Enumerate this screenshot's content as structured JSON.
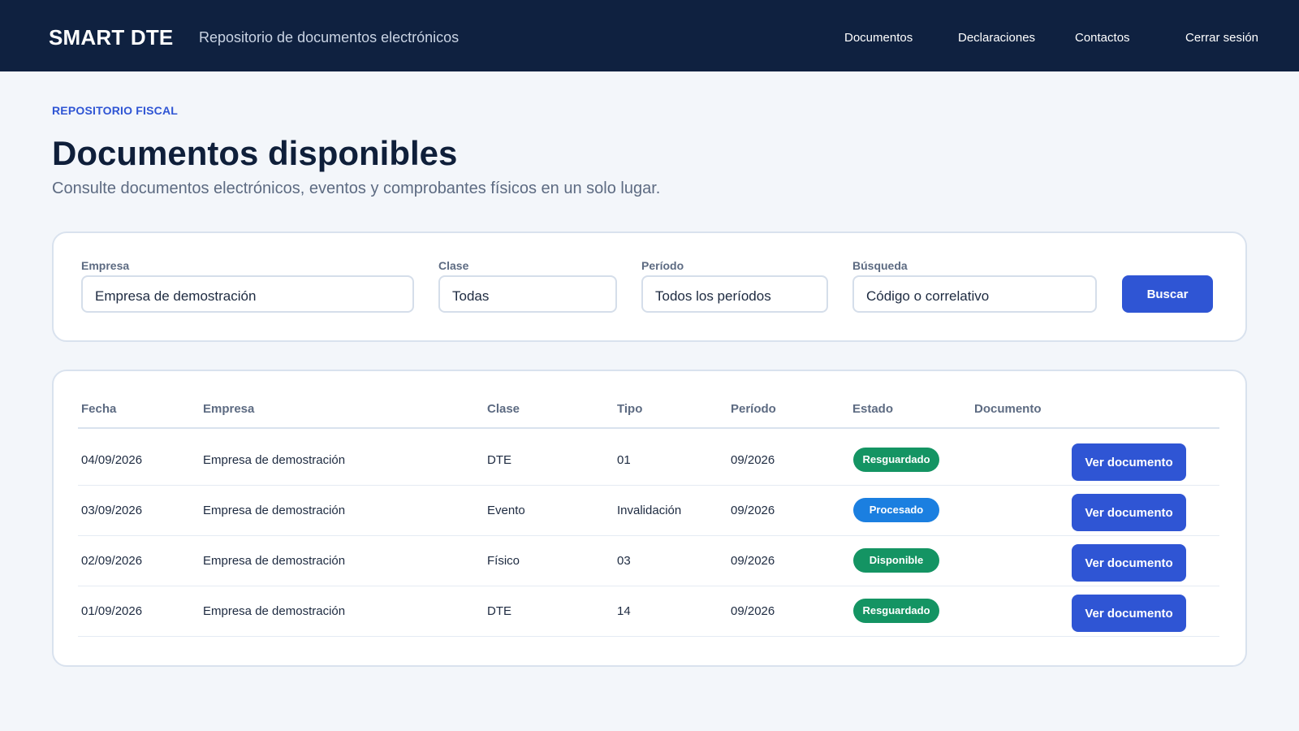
{
  "header": {
    "brand": "SMART DTE",
    "tagline": "Repositorio de documentos electrónicos",
    "nav": [
      "Documentos",
      "Declaraciones",
      "Contactos",
      "Cerrar sesión"
    ]
  },
  "page": {
    "eyebrow": "REPOSITORIO FISCAL",
    "title": "Documentos disponibles",
    "subtitle": "Consulte documentos electrónicos, eventos y comprobantes físicos en un solo lugar."
  },
  "filters": {
    "company": {
      "label": "Empresa",
      "value": "Empresa de demostración"
    },
    "class": {
      "label": "Clase",
      "value": "Todas"
    },
    "period": {
      "label": "Período",
      "value": "Todos los períodos"
    },
    "search": {
      "label": "Búsqueda",
      "placeholder": "Código o correlativo"
    },
    "submit_label": "Buscar"
  },
  "table": {
    "columns": [
      "Fecha",
      "Empresa",
      "Clase",
      "Tipo",
      "Período",
      "Estado",
      "Documento"
    ],
    "rows": [
      {
        "fecha": "04/09/2026",
        "empresa": "Empresa de demostración",
        "clase": "DTE",
        "tipo": "01",
        "periodo": "09/2026",
        "estado": "Resguardado",
        "estado_color": "#149463",
        "action": "Ver documento"
      },
      {
        "fecha": "03/09/2026",
        "empresa": "Empresa de demostración",
        "clase": "Evento",
        "tipo": "Invalidación",
        "periodo": "09/2026",
        "estado": "Procesado",
        "estado_color": "#1b7fe0",
        "action": "Ver documento"
      },
      {
        "fecha": "02/09/2026",
        "empresa": "Empresa de demostración",
        "clase": "Físico",
        "tipo": "03",
        "periodo": "09/2026",
        "estado": "Disponible",
        "estado_color": "#149463",
        "action": "Ver documento"
      },
      {
        "fecha": "01/09/2026",
        "empresa": "Empresa de demostración",
        "clase": "DTE",
        "tipo": "14",
        "periodo": "09/2026",
        "estado": "Resguardado",
        "estado_color": "#149463",
        "action": "Ver documento"
      }
    ]
  },
  "colors": {
    "header_bg": "#0f2140",
    "accent": "#2f55d4",
    "page_bg": "#f3f6fa"
  }
}
